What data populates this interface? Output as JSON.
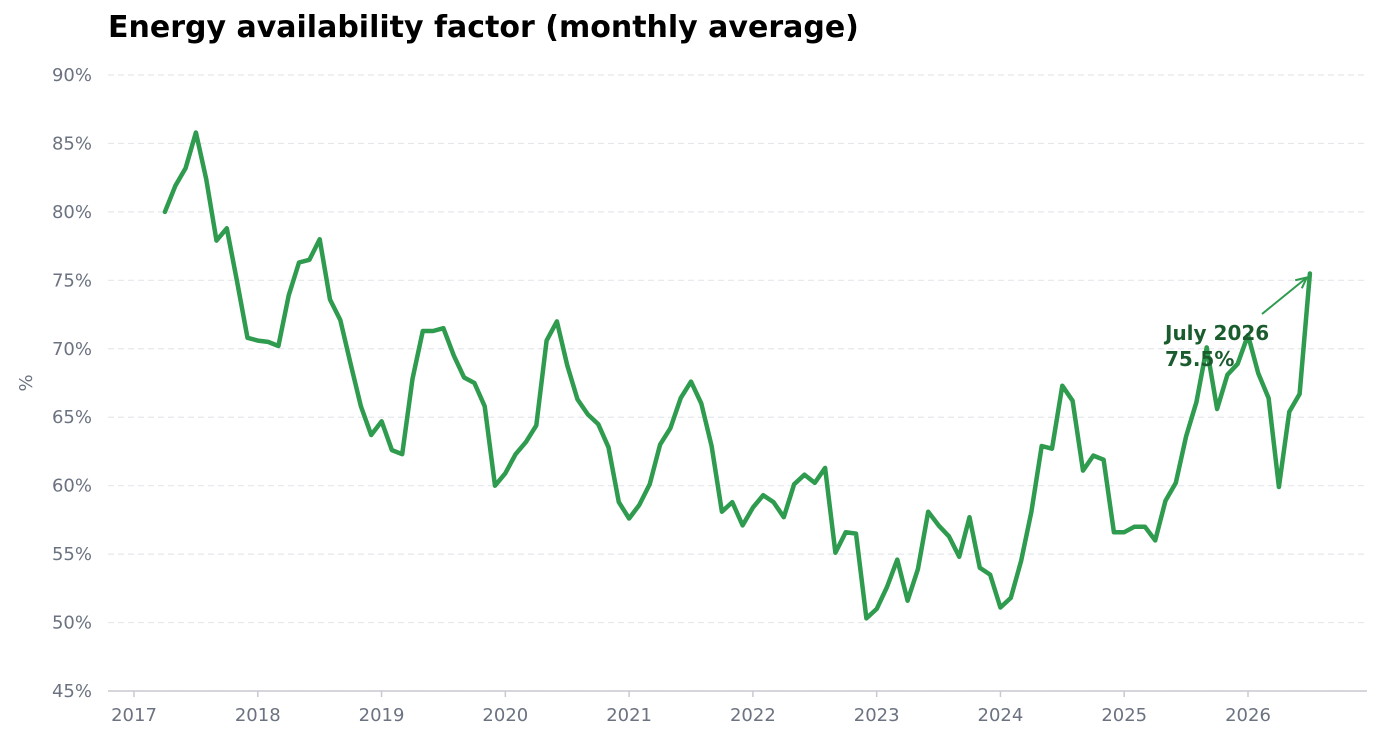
{
  "chart_data": {
    "type": "line",
    "title": "Energy availability factor (monthly average)",
    "xlabel": "",
    "ylabel": "%",
    "x_ticks": [
      "2017",
      "2018",
      "2019",
      "2020",
      "2021",
      "2022",
      "2023",
      "2024",
      "2025",
      "2026"
    ],
    "y_ticks": [
      "45%",
      "50%",
      "55%",
      "60%",
      "65%",
      "70%",
      "75%",
      "80%",
      "85%",
      "90%"
    ],
    "ylim": [
      45,
      90
    ],
    "grid": "horizontal dashed",
    "line_color": "#2e9b4e",
    "series": [
      {
        "x": [
          "2017-04",
          "2017-05",
          "2017-06",
          "2017-07",
          "2017-08",
          "2017-09",
          "2017-10",
          "2017-11",
          "2017-12",
          "2018-01",
          "2018-02",
          "2018-03",
          "2018-04",
          "2018-05",
          "2018-06",
          "2018-07",
          "2018-08",
          "2018-09",
          "2018-10",
          "2018-11",
          "2018-12",
          "2019-01",
          "2019-02",
          "2019-03",
          "2019-04",
          "2019-05",
          "2019-06",
          "2019-07",
          "2019-08",
          "2019-09",
          "2019-10",
          "2019-11",
          "2019-12",
          "2020-01",
          "2020-02",
          "2020-03",
          "2020-04",
          "2020-05",
          "2020-06",
          "2020-07",
          "2020-08",
          "2020-09",
          "2020-10",
          "2020-11",
          "2020-12",
          "2021-01",
          "2021-02",
          "2021-03",
          "2021-04",
          "2021-05",
          "2021-06",
          "2021-07",
          "2021-08",
          "2021-09",
          "2021-10",
          "2021-11",
          "2021-12",
          "2022-01",
          "2022-02",
          "2022-03",
          "2022-04",
          "2022-05",
          "2022-06",
          "2022-07",
          "2022-08",
          "2022-09",
          "2022-10",
          "2022-11",
          "2022-12",
          "2023-01",
          "2023-02",
          "2023-03",
          "2023-04",
          "2023-05",
          "2023-06",
          "2023-07",
          "2023-08",
          "2023-09",
          "2023-10",
          "2023-11",
          "2023-12",
          "2024-01",
          "2024-02",
          "2024-03",
          "2024-04",
          "2024-05",
          "2024-06",
          "2024-07",
          "2024-08",
          "2024-09",
          "2024-10",
          "2024-11",
          "2024-12",
          "2025-01",
          "2025-02",
          "2025-03",
          "2025-04",
          "2025-05",
          "2025-06",
          "2025-07",
          "2025-08",
          "2025-09",
          "2025-10",
          "2025-11",
          "2025-12",
          "2026-01",
          "2026-02",
          "2026-03",
          "2026-04",
          "2026-05",
          "2026-06",
          "2026-07"
        ],
        "values": [
          80.0,
          81.9,
          83.2,
          85.8,
          82.4,
          77.9,
          78.8,
          74.9,
          70.8,
          70.6,
          70.5,
          70.2,
          73.9,
          76.3,
          76.5,
          78.0,
          73.6,
          72.1,
          68.9,
          65.8,
          63.7,
          64.7,
          62.6,
          62.3,
          67.8,
          71.3,
          71.3,
          71.5,
          69.5,
          67.9,
          67.5,
          65.8,
          60.0,
          60.9,
          62.3,
          63.2,
          64.4,
          70.6,
          72.0,
          68.8,
          66.3,
          65.2,
          64.5,
          62.8,
          58.8,
          57.6,
          58.6,
          60.1,
          63.0,
          64.2,
          66.4,
          67.6,
          66.0,
          62.9,
          58.1,
          58.8,
          57.1,
          58.4,
          59.3,
          58.8,
          57.7,
          60.1,
          60.8,
          60.2,
          61.3,
          55.1,
          56.6,
          56.5,
          50.3,
          51.0,
          52.6,
          54.6,
          51.6,
          53.9,
          58.1,
          57.1,
          56.3,
          54.8,
          57.7,
          54.0,
          53.5,
          51.1,
          51.8,
          54.5,
          58.1,
          62.9,
          62.7,
          67.3,
          66.2,
          61.1,
          62.2,
          61.9,
          56.6,
          56.6,
          57.0,
          57.0,
          56.0,
          58.9,
          60.2,
          63.6,
          66.1,
          70.1,
          65.6,
          68.1,
          68.9,
          71.0,
          68.2,
          66.4,
          59.9,
          65.4,
          66.7,
          75.5
        ]
      }
    ],
    "annotation": {
      "line1": "July 2026",
      "line2": "75.5%",
      "target_x": "2026-07",
      "target_y": 75.5,
      "color": "#1a5c2e"
    }
  }
}
